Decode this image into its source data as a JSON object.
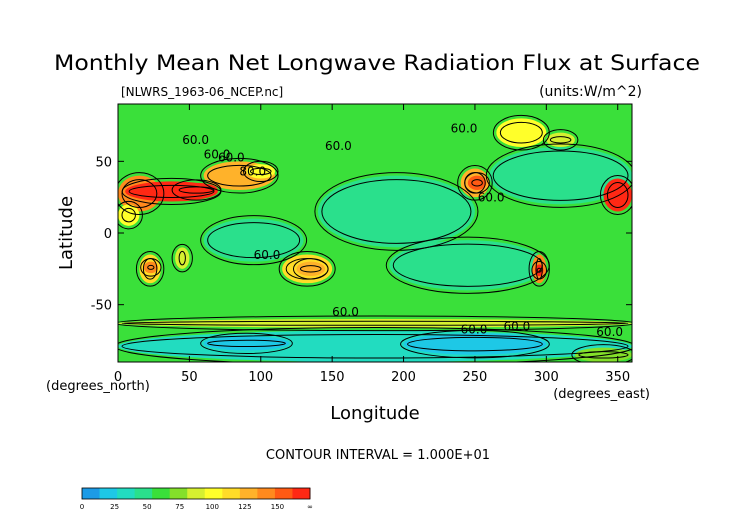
{
  "chart_data": {
    "type": "heatmap",
    "title": "Monthly Mean Net Longwave Radiation Flux at Surface",
    "file_label": "[NLWRS_1963-06_NCEP.nc]",
    "units_label": "(units:W/m^2)",
    "xlabel": "Longitude",
    "ylabel": "Latitude",
    "x_unit_label": "(degrees_east)",
    "y_unit_label": "(degrees_north)",
    "xlim": [
      0,
      360
    ],
    "ylim": [
      -90,
      90
    ],
    "x_ticks": [
      "0",
      "50",
      "100",
      "150",
      "200",
      "250",
      "300",
      "350"
    ],
    "y_ticks": [
      "50",
      "0",
      "-50"
    ],
    "contour_interval_text": "CONTOUR INTERVAL = 1.000E+01",
    "contour_labels": [
      "60.0",
      "60.0",
      "60.0",
      "80.0",
      "60.0",
      "60.0",
      "60.0",
      "60.0",
      "60.0",
      "60.0",
      "60.0",
      "60.0"
    ],
    "colorbar": {
      "ticks": [
        "0",
        "25",
        "50",
        "75",
        "100",
        "125",
        "150",
        "∞"
      ],
      "bins": [
        {
          "from": 0,
          "to": 12.5,
          "color": "#1c9be6"
        },
        {
          "from": 12.5,
          "to": 25,
          "color": "#1ec8e6"
        },
        {
          "from": 25,
          "to": 37.5,
          "color": "#22dcc0"
        },
        {
          "from": 37.5,
          "to": 50,
          "color": "#2ae08c"
        },
        {
          "from": 50,
          "to": 62.5,
          "color": "#3ae03a"
        },
        {
          "from": 62.5,
          "to": 75,
          "color": "#84e02a"
        },
        {
          "from": 75,
          "to": 87.5,
          "color": "#d6f030"
        },
        {
          "from": 87.5,
          "to": 100,
          "color": "#ffff2a"
        },
        {
          "from": 100,
          "to": 112.5,
          "color": "#ffdc28"
        },
        {
          "from": 112.5,
          "to": 125,
          "color": "#ffb22a"
        },
        {
          "from": 125,
          "to": 137.5,
          "color": "#ff8a1e"
        },
        {
          "from": 137.5,
          "to": 150,
          "color": "#ff5a14"
        },
        {
          "from": 150,
          "to": 175,
          "color": "#ff2814"
        }
      ]
    },
    "regions": [
      {
        "lon": [
          0,
          360
        ],
        "lat": [
          -90,
          90
        ],
        "value": 55
      },
      {
        "lon": [
          140,
          250
        ],
        "lat": [
          -10,
          40
        ],
        "value": 38
      },
      {
        "lon": [
          190,
          300
        ],
        "lat": [
          -40,
          -5
        ],
        "value": 45
      },
      {
        "lon": [
          260,
          360
        ],
        "lat": [
          20,
          60
        ],
        "value": 43
      },
      {
        "lon": [
          0,
          360
        ],
        "lat": [
          -90,
          -68
        ],
        "value": 30
      },
      {
        "lon": [
          60,
          130
        ],
        "lat": [
          -20,
          10
        ],
        "value": 40
      },
      {
        "lon": [
          0,
          30
        ],
        "lat": [
          15,
          40
        ],
        "value": 128
      },
      {
        "lon": [
          5,
          70
        ],
        "lat": [
          22,
          36
        ],
        "value": 150
      },
      {
        "lon": [
          40,
          70
        ],
        "lat": [
          25,
          35
        ],
        "value": 165
      },
      {
        "lon": [
          60,
          110
        ],
        "lat": [
          30,
          50
        ],
        "value": 115
      },
      {
        "lon": [
          90,
          110
        ],
        "lat": [
          38,
          48
        ],
        "value": 90
      },
      {
        "lon": [
          0,
          15
        ],
        "lat": [
          5,
          20
        ],
        "value": 90
      },
      {
        "lon": [
          15,
          30
        ],
        "lat": [
          -35,
          -15
        ],
        "value": 105
      },
      {
        "lon": [
          18,
          28
        ],
        "lat": [
          -28,
          -20
        ],
        "value": 130
      },
      {
        "lon": [
          40,
          50
        ],
        "lat": [
          -25,
          -10
        ],
        "value": 85
      },
      {
        "lon": [
          115,
          150
        ],
        "lat": [
          -35,
          -15
        ],
        "value": 108
      },
      {
        "lon": [
          125,
          145
        ],
        "lat": [
          -30,
          -20
        ],
        "value": 120
      },
      {
        "lon": [
          240,
          260
        ],
        "lat": [
          25,
          45
        ],
        "value": 120
      },
      {
        "lon": [
          245,
          258
        ],
        "lat": [
          30,
          40
        ],
        "value": 140
      },
      {
        "lon": [
          290,
          300
        ],
        "lat": [
          -35,
          -15
        ],
        "value": 125
      },
      {
        "lon": [
          292,
          298
        ],
        "lat": [
          -30,
          -22
        ],
        "value": 160
      },
      {
        "lon": [
          340,
          360
        ],
        "lat": [
          15,
          38
        ],
        "value": 155
      },
      {
        "lon": [
          200,
          300
        ],
        "lat": [
          -85,
          -70
        ],
        "value": 20
      },
      {
        "lon": [
          60,
          120
        ],
        "lat": [
          -82,
          -72
        ],
        "value": 22
      },
      {
        "lon": [
          320,
          360
        ],
        "lat": [
          -90,
          -80
        ],
        "value": 70
      },
      {
        "lon": [
          0,
          360
        ],
        "lat": [
          -66,
          -60
        ],
        "value": 75
      },
      {
        "lon": [
          265,
          300
        ],
        "lat": [
          60,
          80
        ],
        "value": 95
      },
      {
        "lon": [
          300,
          320
        ],
        "lat": [
          60,
          70
        ],
        "value": 80
      }
    ]
  }
}
